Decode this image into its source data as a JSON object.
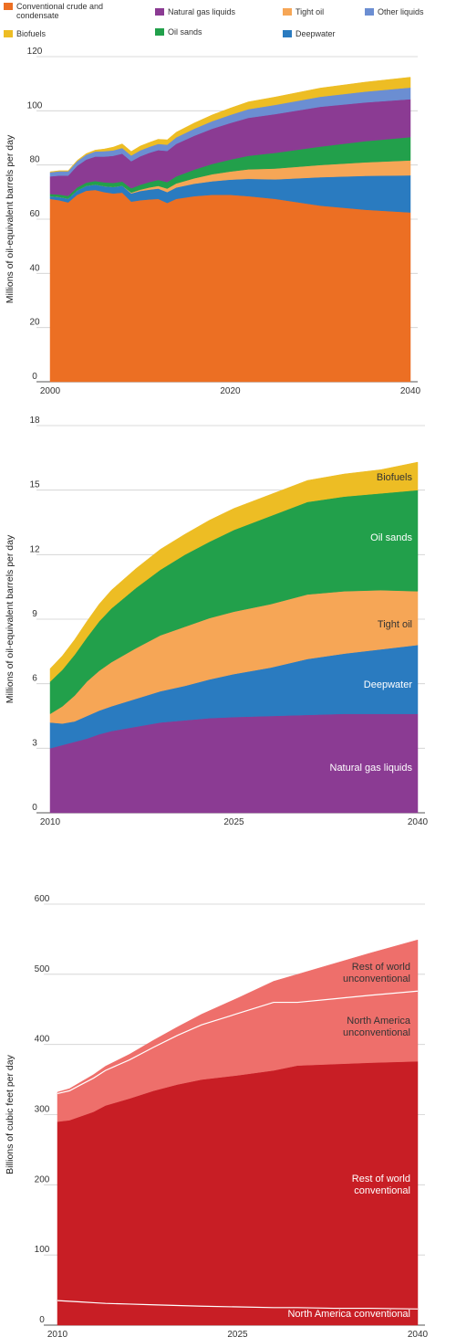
{
  "legend": {
    "items": [
      {
        "label": "Conventional crude and condensate",
        "color": "#ec6f23"
      },
      {
        "label": "Natural gas liquids",
        "color": "#8b3b93"
      },
      {
        "label": "Tight oil",
        "color": "#f6a656"
      },
      {
        "label": "Other liquids",
        "color": "#6b8ed2"
      },
      {
        "label": "Biofuels",
        "color": "#edbd24"
      },
      {
        "label": "Oil sands",
        "color": "#22a04b"
      },
      {
        "label": "Deepwater",
        "color": "#2a7bc0"
      }
    ]
  },
  "chart_data": [
    {
      "type": "area",
      "stacked": true,
      "ylabel": "Millions of oil-equivalent barrels per day",
      "xlabel": "",
      "xlim": [
        2000,
        2040
      ],
      "ylim": [
        0,
        120
      ],
      "xticks": [
        "2000",
        "2020",
        "2040"
      ],
      "yticks": [
        "0",
        "20",
        "40",
        "60",
        "80",
        "100",
        "120"
      ],
      "grid": true,
      "x": [
        2000,
        2001,
        2002,
        2003,
        2004,
        2005,
        2006,
        2007,
        2008,
        2009,
        2010,
        2011,
        2012,
        2013,
        2014,
        2016,
        2018,
        2020,
        2022,
        2025,
        2030,
        2035,
        2040
      ],
      "series": [
        {
          "name": "Conventional crude and condensate",
          "color": "#ec6f23",
          "values": [
            67.5,
            67.0,
            66.2,
            69.0,
            70.5,
            70.8,
            70.0,
            69.5,
            69.8,
            66.5,
            67.0,
            67.3,
            67.5,
            66.0,
            67.5,
            68.5,
            69.0,
            69.0,
            68.5,
            67.5,
            65.0,
            63.5,
            62.5
          ]
        },
        {
          "name": "Deepwater",
          "color": "#2a7bc0",
          "values": [
            1.0,
            1.2,
            1.4,
            1.6,
            1.8,
            2.0,
            2.2,
            2.4,
            2.6,
            3.0,
            3.4,
            3.6,
            3.8,
            4.0,
            4.2,
            4.6,
            5.0,
            5.6,
            6.4,
            7.2,
            10.5,
            12.5,
            13.7
          ]
        },
        {
          "name": "Tight oil",
          "color": "#f6a656",
          "values": [
            0,
            0,
            0,
            0,
            0,
            0,
            0,
            0,
            0,
            0.3,
            0.5,
            0.8,
            1.0,
            1.3,
            1.5,
            2.0,
            2.6,
            3.0,
            3.5,
            4.0,
            4.5,
            5.0,
            5.5
          ]
        },
        {
          "name": "Oil sands",
          "color": "#22a04b",
          "values": [
            0.8,
            0.9,
            1.0,
            1.1,
            1.2,
            1.3,
            1.4,
            1.5,
            1.5,
            1.6,
            1.8,
            2.0,
            2.2,
            2.4,
            2.6,
            3.2,
            3.8,
            4.4,
            5.0,
            5.8,
            6.8,
            7.8,
            8.6
          ]
        },
        {
          "name": "Natural gas liquids",
          "color": "#8b3b93",
          "values": [
            6.5,
            7.0,
            7.5,
            8.0,
            8.5,
            9.0,
            9.5,
            10.0,
            10.3,
            10.0,
            10.5,
            10.8,
            11.0,
            11.5,
            12.0,
            12.5,
            13.0,
            13.5,
            14.0,
            14.3,
            14.7,
            14.3,
            14.0
          ]
        },
        {
          "name": "Other liquids",
          "color": "#6b8ed2",
          "values": [
            1.5,
            1.6,
            1.6,
            1.7,
            1.8,
            1.9,
            2.0,
            2.0,
            2.1,
            2.1,
            2.2,
            2.2,
            2.3,
            2.3,
            2.4,
            2.6,
            2.8,
            3.0,
            3.2,
            3.4,
            3.7,
            4.0,
            4.3
          ]
        },
        {
          "name": "Biofuels",
          "color": "#edbd24",
          "values": [
            0.2,
            0.2,
            0.2,
            0.3,
            0.4,
            0.5,
            0.8,
            1.2,
            1.5,
            1.5,
            1.6,
            1.6,
            1.7,
            1.8,
            1.9,
            2.1,
            2.3,
            2.5,
            2.7,
            2.9,
            3.2,
            3.5,
            3.8
          ]
        }
      ]
    },
    {
      "type": "area",
      "stacked": true,
      "ylabel": "Millions of oil-equivalent barrels per day",
      "xlabel": "",
      "xlim": [
        2010,
        2040
      ],
      "ylim": [
        0,
        18
      ],
      "xticks": [
        "2010",
        "2025",
        "2040"
      ],
      "yticks": [
        "0",
        "3",
        "6",
        "9",
        "12",
        "15",
        "18"
      ],
      "grid": true,
      "x": [
        2010,
        2011,
        2012,
        2013,
        2014,
        2015,
        2017,
        2019,
        2021,
        2023,
        2025,
        2028,
        2031,
        2034,
        2037,
        2040
      ],
      "series": [
        {
          "name": "Natural gas liquids",
          "color": "#8b3b93",
          "values": [
            3.0,
            3.15,
            3.3,
            3.45,
            3.65,
            3.8,
            4.0,
            4.2,
            4.3,
            4.4,
            4.45,
            4.5,
            4.55,
            4.6,
            4.6,
            4.6
          ]
        },
        {
          "name": "Deepwater",
          "color": "#2a7bc0",
          "values": [
            1.2,
            1.0,
            0.95,
            1.05,
            1.1,
            1.15,
            1.3,
            1.45,
            1.6,
            1.8,
            2.0,
            2.25,
            2.6,
            2.8,
            3.0,
            3.2
          ]
        },
        {
          "name": "Tight oil",
          "color": "#f6a656",
          "values": [
            0.4,
            0.8,
            1.2,
            1.6,
            1.85,
            2.05,
            2.35,
            2.6,
            2.75,
            2.85,
            2.9,
            2.95,
            3.0,
            2.9,
            2.75,
            2.5
          ]
        },
        {
          "name": "Oil sands",
          "color": "#22a04b",
          "values": [
            1.5,
            1.7,
            1.9,
            2.05,
            2.3,
            2.5,
            2.8,
            3.05,
            3.35,
            3.55,
            3.8,
            4.1,
            4.3,
            4.4,
            4.5,
            4.7
          ]
        },
        {
          "name": "Biofuels",
          "color": "#edbd24",
          "values": [
            0.6,
            0.65,
            0.7,
            0.75,
            0.8,
            0.85,
            0.9,
            0.95,
            0.95,
            1.0,
            1.0,
            1.0,
            1.0,
            1.05,
            1.1,
            1.3
          ]
        }
      ],
      "annotations": [
        "Biofuels",
        "Oil sands",
        "Tight oil",
        "Deepwater",
        "Natural gas liquids"
      ]
    },
    {
      "type": "area",
      "stacked": true,
      "ylabel": "Billions of cubic feet per day",
      "xlabel": "",
      "xlim": [
        2010,
        2040
      ],
      "ylim": [
        0,
        600
      ],
      "xticks": [
        "2010",
        "2025",
        "2040"
      ],
      "yticks": [
        "0",
        "100",
        "200",
        "300",
        "400",
        "500",
        "600"
      ],
      "grid": true,
      "x": [
        2010,
        2011,
        2012,
        2013,
        2014,
        2016,
        2018,
        2020,
        2022,
        2025,
        2028,
        2030,
        2033,
        2036,
        2040
      ],
      "series": [
        {
          "name": "North America conventional",
          "color": "#c81e25",
          "values": [
            35,
            34,
            33,
            32,
            31,
            30,
            29,
            28,
            27,
            26,
            25,
            25,
            24,
            24,
            23
          ]
        },
        {
          "name": "Rest of world conventional",
          "color": "#c81e25",
          "values": [
            255,
            258,
            265,
            272,
            282,
            293,
            305,
            315,
            323,
            330,
            338,
            345,
            348,
            350,
            353
          ]
        },
        {
          "name": "North America unconventional",
          "color": "#ee6f6b",
          "values": [
            40,
            42,
            45,
            48,
            50,
            55,
            62,
            70,
            78,
            88,
            97,
            90,
            93,
            96,
            100
          ]
        },
        {
          "name": "Rest of world unconventional",
          "color": "#ee6f6b",
          "values": [
            2,
            3,
            4,
            5,
            6,
            8,
            10,
            12,
            15,
            22,
            30,
            40,
            50,
            60,
            73
          ]
        }
      ],
      "annotations": [
        "Rest of world unconventional",
        "North America unconventional",
        "Rest of world conventional",
        "North America conventional"
      ]
    }
  ]
}
